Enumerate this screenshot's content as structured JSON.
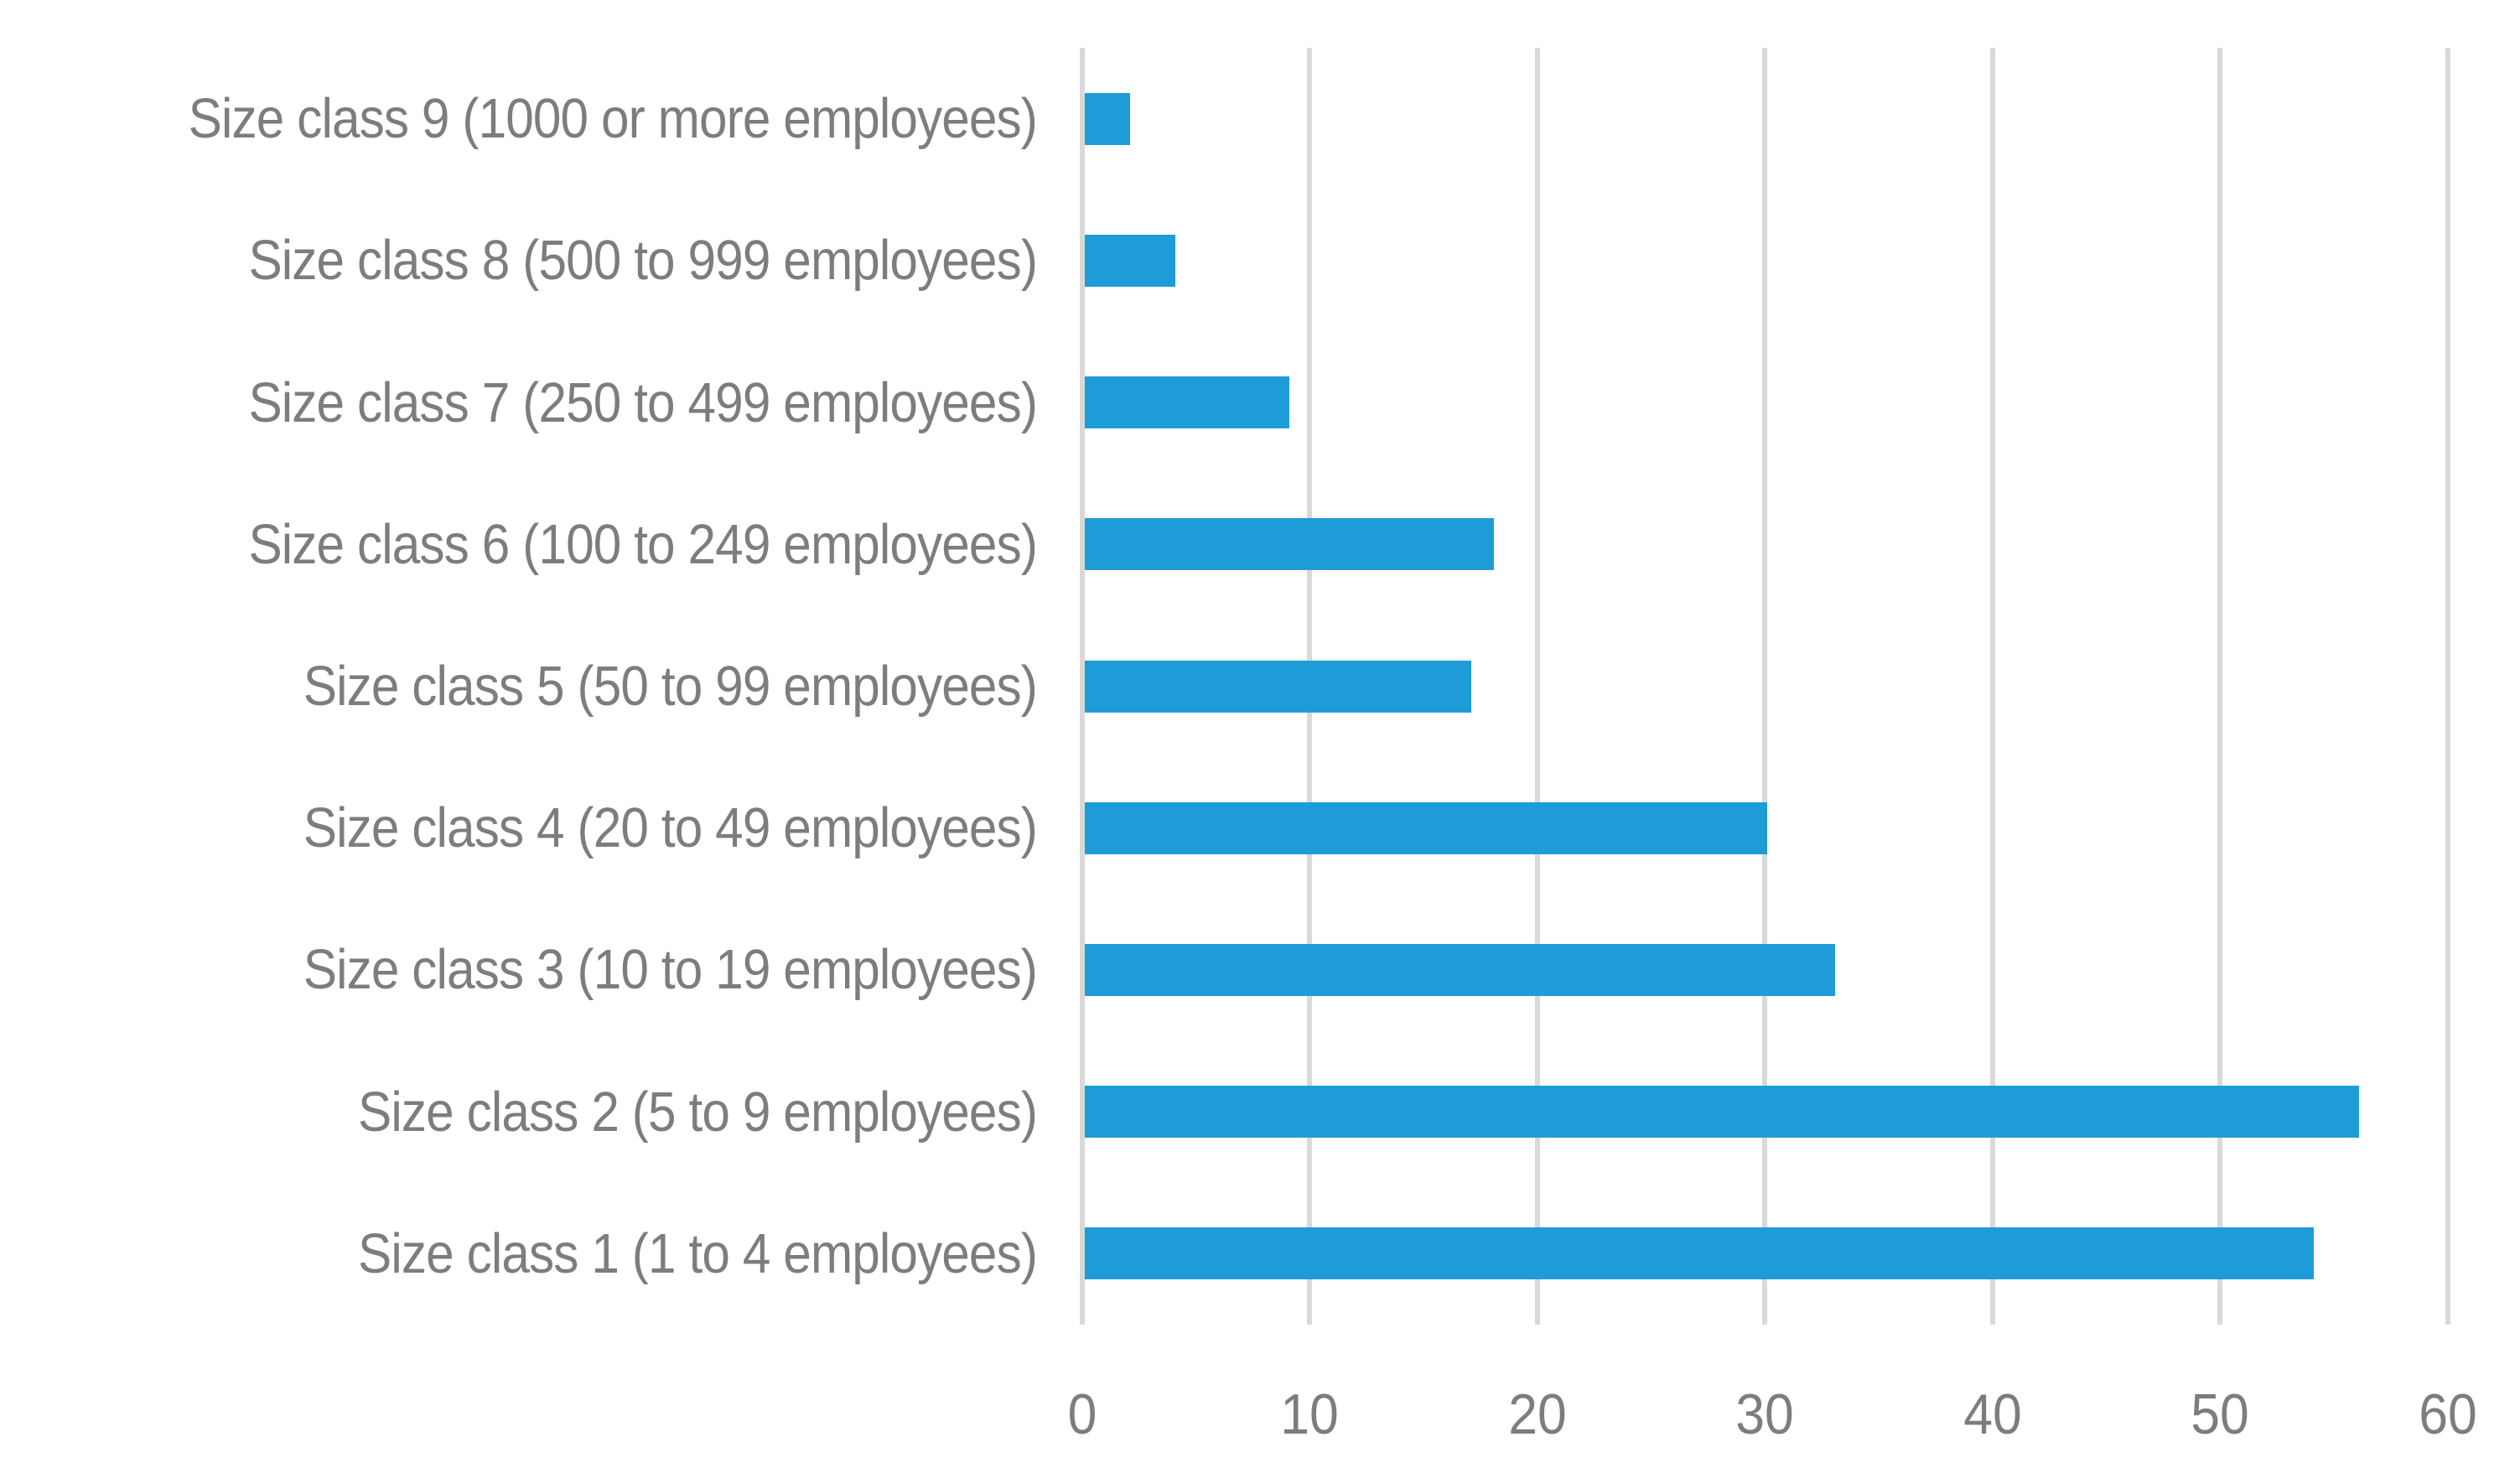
{
  "chart_data": {
    "type": "bar",
    "orientation": "horizontal",
    "title": "",
    "xlabel": "",
    "ylabel": "",
    "categories": [
      "Size class 9 (1000 or more employees)",
      "Size class 8 (500 to 999 employees)",
      "Size class 7 (250 to 499 employees)",
      "Size class 6 (100 to 249 employees)",
      "Size class 5 (50 to 99 employees)",
      "Size class 4 (20 to 49 employees)",
      "Size class 3 (10 to 19 employees)",
      "Size class 2 (5 to 9 employees)",
      "Size class 1 (1 to 4 employees)"
    ],
    "values": [
      2,
      4,
      9,
      18,
      17,
      30,
      33,
      56,
      54
    ],
    "xlim": [
      0,
      60
    ],
    "xticks": [
      0,
      10,
      20,
      30,
      40,
      50,
      60
    ],
    "grid": true,
    "legend": "none",
    "bar_color": "#1E9CD8",
    "gridline_color": "#D9D9D9",
    "text_color": "#7D7D7D"
  }
}
